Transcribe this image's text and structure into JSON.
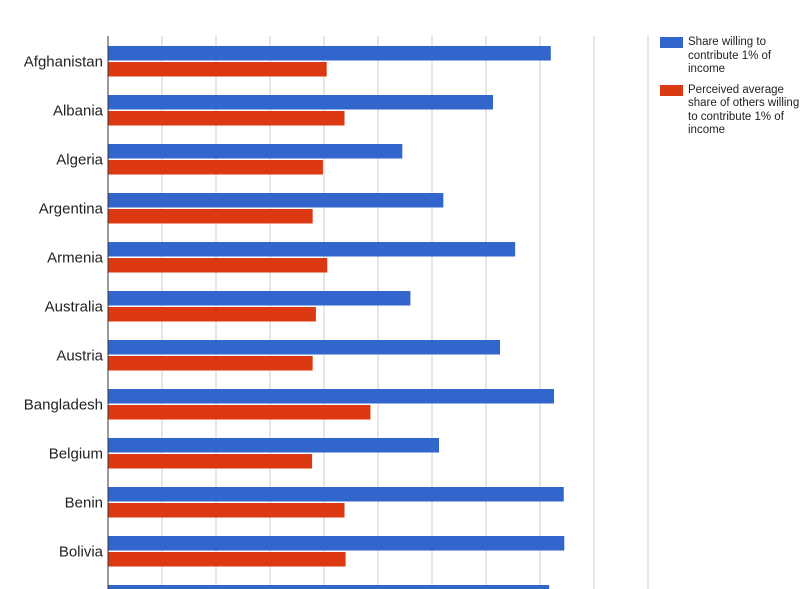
{
  "chart_data": {
    "type": "bar",
    "orientation": "horizontal",
    "categories": [
      "Afghanistan",
      "Albania",
      "Algeria",
      "Argentina",
      "Armenia",
      "Australia",
      "Austria",
      "Bangladesh",
      "Belgium",
      "Benin",
      "Bolivia"
    ],
    "series": [
      {
        "name": "Share willing to contribute 1% of income",
        "color": "#3366cc",
        "values": [
          82,
          71.3,
          54.5,
          62.1,
          75.4,
          56,
          72.6,
          82.6,
          61.3,
          84.4,
          84.5
        ]
      },
      {
        "name": "Perceived average share of others willing to contribute 1% of income",
        "color": "#dc3912",
        "values": [
          40.5,
          43.8,
          39.8,
          37.9,
          40.6,
          38.5,
          37.9,
          48.6,
          37.8,
          43.8,
          44
        ]
      }
    ],
    "xlim": [
      0,
      100
    ],
    "grid": true,
    "legend_position": "right"
  }
}
